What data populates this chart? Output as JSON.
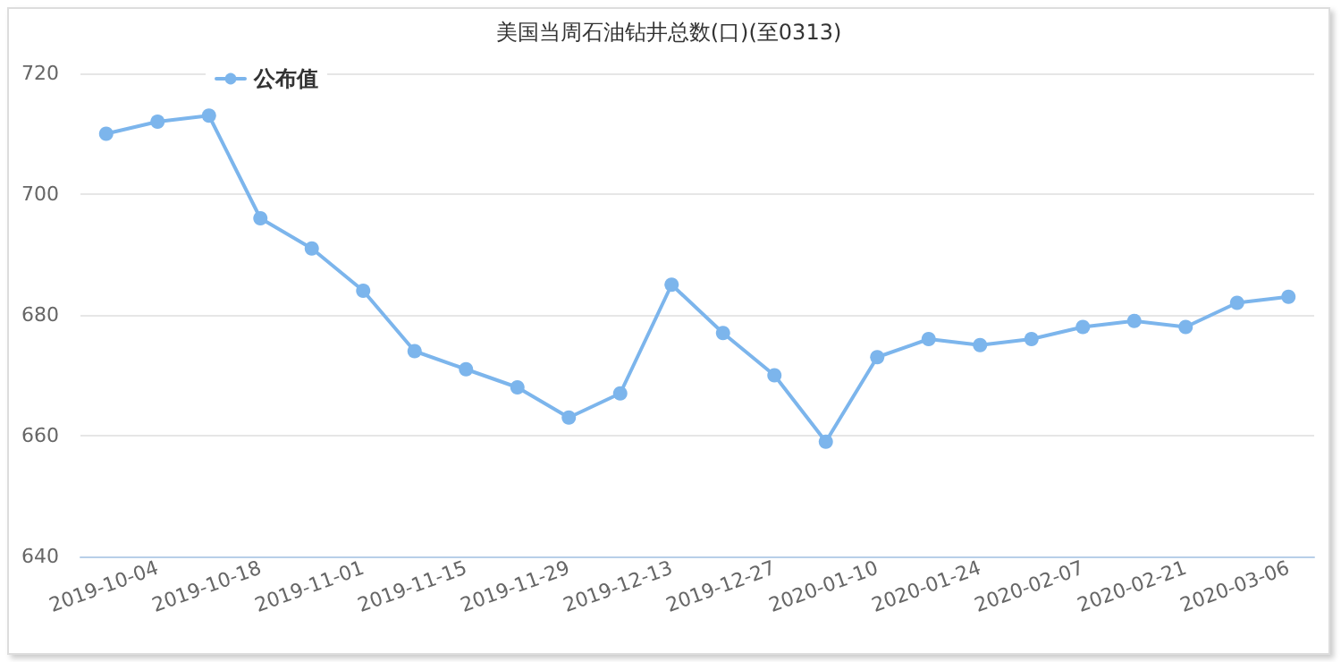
{
  "chart_data": {
    "type": "line",
    "title": "美国当周石油钻井总数(口)(至0313)",
    "categories": [
      null,
      "2019-10-04",
      null,
      "2019-10-18",
      null,
      "2019-11-01",
      null,
      "2019-11-15",
      null,
      "2019-11-29",
      null,
      "2019-12-13",
      null,
      "2019-12-27",
      null,
      "2020-01-10",
      null,
      "2020-01-24",
      null,
      "2020-02-07",
      null,
      "2020-02-21",
      null,
      "2020-03-06"
    ],
    "series": [
      {
        "name": "公布值",
        "color": "#7cb5ec",
        "values": [
          710,
          712,
          713,
          696,
          691,
          684,
          674,
          671,
          668,
          663,
          667,
          685,
          677,
          670,
          659,
          673,
          676,
          675,
          676,
          678,
          679,
          678,
          682,
          683
        ]
      }
    ],
    "ylim": [
      640,
      720
    ],
    "yticks": [
      640,
      660,
      680,
      700,
      720
    ],
    "grid": "y",
    "legend": "top left",
    "marker": "circle",
    "line_style": "solid"
  }
}
